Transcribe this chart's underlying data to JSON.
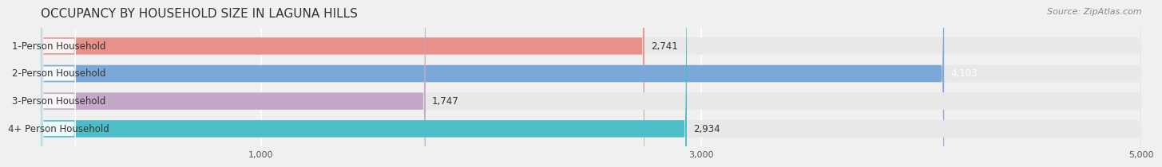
{
  "title": "OCCUPANCY BY HOUSEHOLD SIZE IN LAGUNA HILLS",
  "source": "Source: ZipAtlas.com",
  "categories": [
    "1-Person Household",
    "2-Person Household",
    "3-Person Household",
    "4+ Person Household"
  ],
  "values": [
    2741,
    4103,
    1747,
    2934
  ],
  "bar_colors": [
    "#e8908a",
    "#7aa8d8",
    "#c4a8c8",
    "#4dbdc8"
  ],
  "label_colors": [
    "#c0504d",
    "#4472c4",
    "#9b59b6",
    "#17a2b8"
  ],
  "value_labels": [
    "2,741",
    "4,103",
    "1,747",
    "2,934"
  ],
  "xlim": [
    0,
    5000
  ],
  "xticks": [
    1000,
    3000,
    5000
  ],
  "xtick_labels": [
    "1,000",
    "3,000",
    "5,000"
  ],
  "background_color": "#f0f0f0",
  "bar_bg_color": "#e8e8e8",
  "title_fontsize": 11,
  "source_fontsize": 8,
  "label_fontsize": 8.5,
  "value_fontsize": 8.5,
  "bar_height": 0.62
}
